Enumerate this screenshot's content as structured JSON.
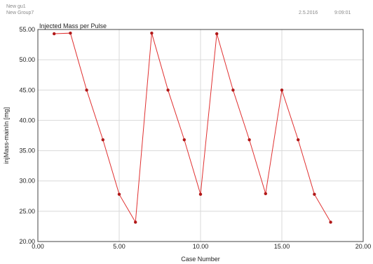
{
  "header": {
    "gui_name": "New gu1",
    "group_name": "New Group7",
    "date": "2.5.2016",
    "time": "9:09:01"
  },
  "chart_data": {
    "type": "line",
    "title": "Injected Mass per Pulse",
    "xlabel": "Case Number",
    "ylabel": "injMass-mainIn [mg]",
    "xlim": [
      0,
      20
    ],
    "ylim": [
      20,
      55
    ],
    "x_ticks": [
      "0.00",
      "5.00",
      "10.00",
      "15.00",
      "20.00"
    ],
    "x_tick_values": [
      0,
      5,
      10,
      15,
      20
    ],
    "y_ticks": [
      "20.00",
      "25.00",
      "30.00",
      "35.00",
      "40.00",
      "45.00",
      "50.00",
      "55.00"
    ],
    "y_tick_values": [
      20,
      25,
      30,
      35,
      40,
      45,
      50,
      55
    ],
    "grid": true,
    "series": [
      {
        "color": "#e03030",
        "marker_color": "#b01818",
        "x": [
          1,
          2,
          3,
          4,
          5,
          6,
          7,
          8,
          9,
          10,
          11,
          12,
          13,
          14,
          15,
          16,
          17,
          18
        ],
        "y": [
          54.3,
          54.4,
          45.0,
          36.8,
          27.8,
          23.2,
          54.4,
          45.0,
          36.8,
          27.8,
          54.3,
          45.0,
          36.8,
          27.9,
          45.0,
          36.8,
          27.8,
          23.2
        ]
      }
    ]
  }
}
